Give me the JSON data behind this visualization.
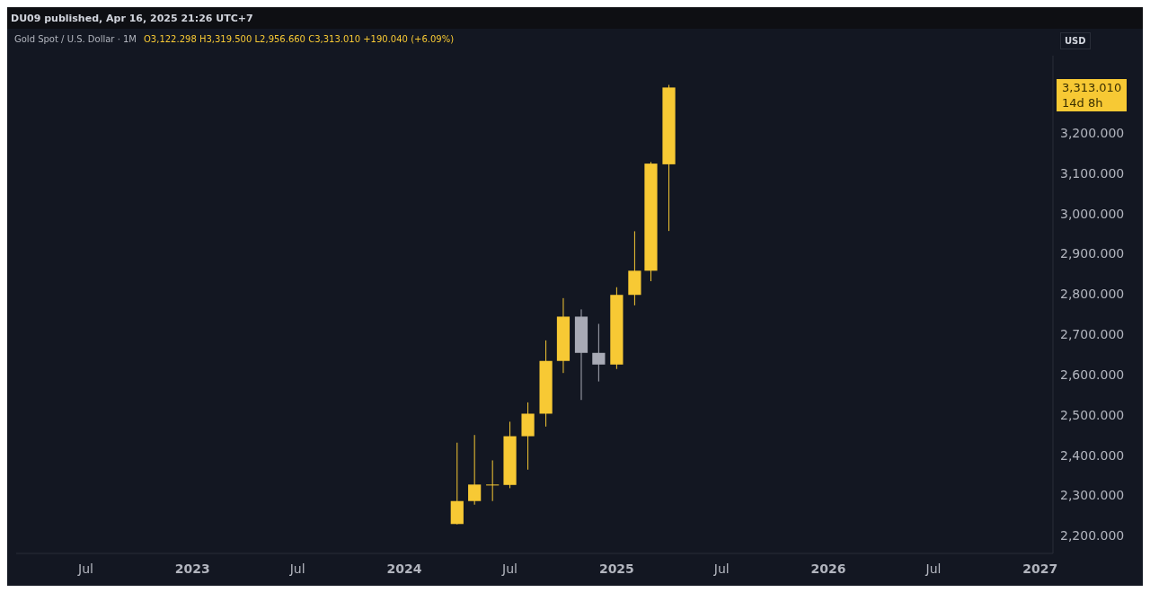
{
  "chart_data": {
    "type": "candlestick",
    "title": "Gold Spot / U.S. Dollar · 1M",
    "subtitle": "O3,122.298 H3,319.500 L2,956.660 C3,313.010 +190.040 (+6.09%)",
    "ylabel": "USD",
    "x": [
      "2024-04",
      "2024-05",
      "2024-06",
      "2024-07",
      "2024-08",
      "2024-09",
      "2024-10",
      "2024-11",
      "2024-12",
      "2025-01",
      "2025-02",
      "2025-03",
      "2025-04"
    ],
    "ohlc": [
      [
        2229,
        2431,
        2228,
        2286
      ],
      [
        2286,
        2450,
        2277,
        2327
      ],
      [
        2327,
        2387,
        2286,
        2326
      ],
      [
        2326,
        2483,
        2318,
        2447
      ],
      [
        2447,
        2531,
        2364,
        2503
      ],
      [
        2503,
        2685,
        2471,
        2634
      ],
      [
        2634,
        2790,
        2604,
        2744
      ],
      [
        2744,
        2762,
        2537,
        2654
      ],
      [
        2654,
        2726,
        2583,
        2625
      ],
      [
        2625,
        2817,
        2614,
        2798
      ],
      [
        2798,
        2956,
        2772,
        2858
      ],
      [
        2858,
        3128,
        2832,
        3124
      ],
      [
        3122.298,
        3319.5,
        2956.66,
        3313.01
      ]
    ],
    "colors": [
      "#f7c934",
      "#f7c934",
      "#f7c934",
      "#f7c934",
      "#f7c934",
      "#f7c934",
      "#f7c934",
      "#a8aab5",
      "#a8aab5",
      "#f7c934",
      "#f7c934",
      "#f7c934",
      "#f7c934"
    ],
    "xlim": [
      "2022-03-03",
      "2027-01-23"
    ],
    "xticks": [
      {
        "value": "2022-07",
        "label": "Jul"
      },
      {
        "value": "2023-01",
        "label": "2023"
      },
      {
        "value": "2023-07",
        "label": "Jul"
      },
      {
        "value": "2024-01",
        "label": "2024"
      },
      {
        "value": "2024-07",
        "label": "Jul"
      },
      {
        "value": "2025-01",
        "label": "2025"
      },
      {
        "value": "2025-07",
        "label": "Jul"
      },
      {
        "value": "2026-01",
        "label": "2026"
      },
      {
        "value": "2026-07",
        "label": "Jul"
      },
      {
        "value": "2027-01",
        "label": "2027"
      }
    ],
    "ylim": [
      2156,
      3392
    ],
    "yticks": [
      {
        "value": 2200,
        "label": "2,200.000"
      },
      {
        "value": 2300,
        "label": "2,300.000"
      },
      {
        "value": 2400,
        "label": "2,400.000"
      },
      {
        "value": 2500,
        "label": "2,500.000"
      },
      {
        "value": 2600,
        "label": "2,600.000"
      },
      {
        "value": 2700,
        "label": "2,700.000"
      },
      {
        "value": 2800,
        "label": "2,800.000"
      },
      {
        "value": 2900,
        "label": "2,900.000"
      },
      {
        "value": 3000,
        "label": "3,000.000"
      },
      {
        "value": 3100,
        "label": "3,100.000"
      },
      {
        "value": 3200,
        "label": "3,200.000"
      }
    ],
    "annotations": [
      "DU09 published, Apr 16, 2025 21:26 UTC+7",
      "3,313.010",
      "14d 8h"
    ]
  }
}
